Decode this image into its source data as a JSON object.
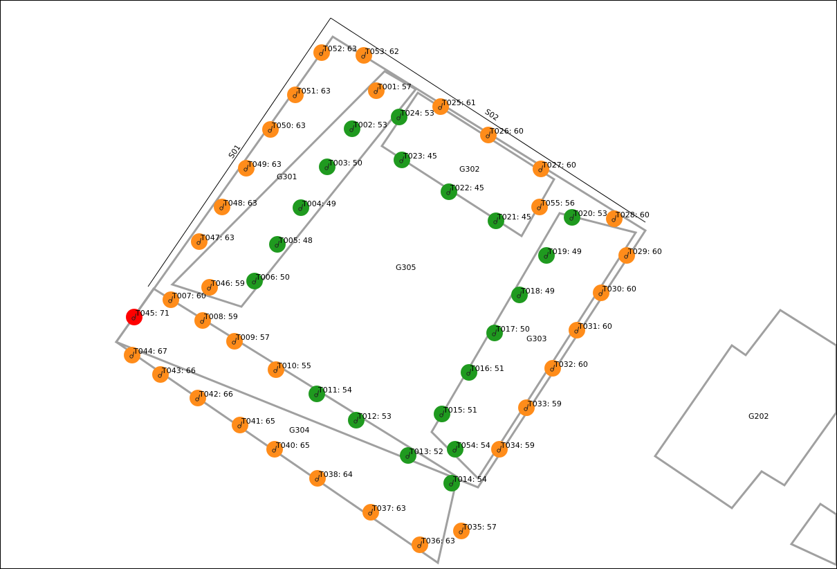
{
  "colors": {
    "high": "#ff0000",
    "medium": "#ff8c1a",
    "low": "#1f9a1f",
    "building": "#a0a0a0"
  },
  "segments": [
    "S01",
    "S02"
  ],
  "zones": [
    "G301",
    "G302",
    "G303",
    "G304",
    "G305",
    "G202"
  ],
  "points": [
    {
      "id": "T001",
      "value": 57,
      "level": "medium"
    },
    {
      "id": "T002",
      "value": 53,
      "level": "low"
    },
    {
      "id": "T003",
      "value": 50,
      "level": "low"
    },
    {
      "id": "T004",
      "value": 49,
      "level": "low"
    },
    {
      "id": "T005",
      "value": 48,
      "level": "low"
    },
    {
      "id": "T006",
      "value": 50,
      "level": "low"
    },
    {
      "id": "T007",
      "value": 60,
      "level": "medium"
    },
    {
      "id": "T008",
      "value": 59,
      "level": "medium"
    },
    {
      "id": "T009",
      "value": 57,
      "level": "medium"
    },
    {
      "id": "T010",
      "value": 55,
      "level": "medium"
    },
    {
      "id": "T011",
      "value": 54,
      "level": "low"
    },
    {
      "id": "T012",
      "value": 53,
      "level": "low"
    },
    {
      "id": "T013",
      "value": 52,
      "level": "low"
    },
    {
      "id": "T014",
      "value": 54,
      "level": "low"
    },
    {
      "id": "T015",
      "value": 51,
      "level": "low"
    },
    {
      "id": "T016",
      "value": 51,
      "level": "low"
    },
    {
      "id": "T017",
      "value": 50,
      "level": "low"
    },
    {
      "id": "T018",
      "value": 49,
      "level": "low"
    },
    {
      "id": "T019",
      "value": 49,
      "level": "low"
    },
    {
      "id": "T020",
      "value": 53,
      "level": "low"
    },
    {
      "id": "T021",
      "value": 45,
      "level": "low"
    },
    {
      "id": "T022",
      "value": 45,
      "level": "low"
    },
    {
      "id": "T023",
      "value": 45,
      "level": "low"
    },
    {
      "id": "T024",
      "value": 53,
      "level": "low"
    },
    {
      "id": "T025",
      "value": 61,
      "level": "medium"
    },
    {
      "id": "T026",
      "value": 60,
      "level": "medium"
    },
    {
      "id": "T027",
      "value": 60,
      "level": "medium"
    },
    {
      "id": "T028",
      "value": 60,
      "level": "medium"
    },
    {
      "id": "T029",
      "value": 60,
      "level": "medium"
    },
    {
      "id": "T030",
      "value": 60,
      "level": "medium"
    },
    {
      "id": "T031",
      "value": 60,
      "level": "medium"
    },
    {
      "id": "T032",
      "value": 60,
      "level": "medium"
    },
    {
      "id": "T033",
      "value": 59,
      "level": "medium"
    },
    {
      "id": "T034",
      "value": 59,
      "level": "medium"
    },
    {
      "id": "T035",
      "value": 57,
      "level": "medium"
    },
    {
      "id": "T036",
      "value": 63,
      "level": "medium"
    },
    {
      "id": "T037",
      "value": 63,
      "level": "medium"
    },
    {
      "id": "T038",
      "value": 64,
      "level": "medium"
    },
    {
      "id": "T040",
      "value": 65,
      "level": "medium"
    },
    {
      "id": "T041",
      "value": 65,
      "level": "medium"
    },
    {
      "id": "T042",
      "value": 66,
      "level": "medium"
    },
    {
      "id": "T043",
      "value": 66,
      "level": "medium"
    },
    {
      "id": "T044",
      "value": 67,
      "level": "medium"
    },
    {
      "id": "T045",
      "value": 71,
      "level": "high"
    },
    {
      "id": "T046",
      "value": 59,
      "level": "medium"
    },
    {
      "id": "T047",
      "value": 63,
      "level": "medium"
    },
    {
      "id": "T048",
      "value": 63,
      "level": "medium"
    },
    {
      "id": "T049",
      "value": 63,
      "level": "medium"
    },
    {
      "id": "T050",
      "value": 63,
      "level": "medium"
    },
    {
      "id": "T051",
      "value": 63,
      "level": "medium"
    },
    {
      "id": "T052",
      "value": 63,
      "level": "medium"
    },
    {
      "id": "T053",
      "value": 62,
      "level": "medium"
    },
    {
      "id": "T054",
      "value": 54,
      "level": "low"
    },
    {
      "id": "T055",
      "value": 56,
      "level": "medium"
    }
  ]
}
